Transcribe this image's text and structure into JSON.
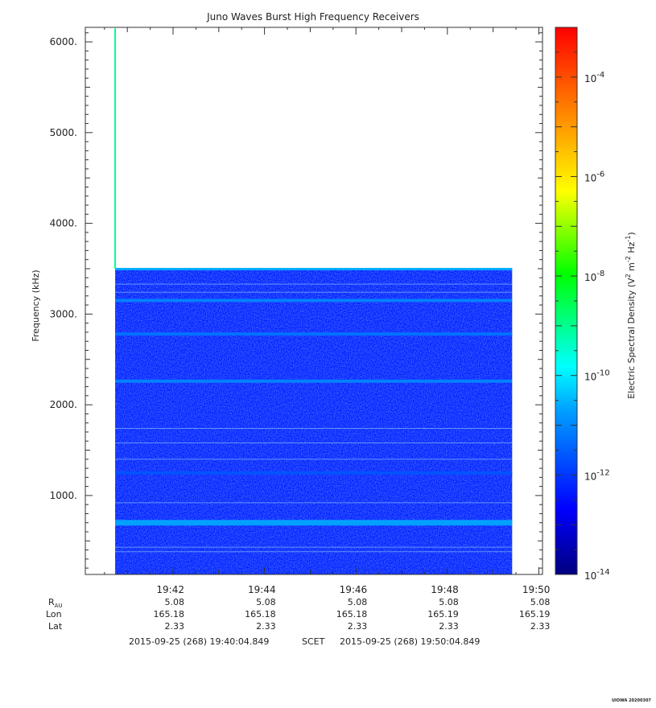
{
  "chart_data": {
    "type": "heatmap",
    "title": "Juno Waves Burst High Frequency Receivers",
    "ylabel": "Frequency (kHz)",
    "y_unit": "kHz",
    "ylim": [
      130,
      6160
    ],
    "y_ticks": [
      1000,
      2000,
      3000,
      4000,
      5000,
      6000
    ],
    "y_tick_labels": [
      "1000.",
      "2000.",
      "3000.",
      "4000.",
      "5000.",
      "6000."
    ],
    "x_ticks": [
      "19:42",
      "19:44",
      "19:46",
      "19:48",
      "19:50"
    ],
    "time_range": {
      "start": "19:40:04.849",
      "end": "19:50:04.849"
    },
    "data_extent": {
      "start": "19:40:44",
      "end": "19:49:25",
      "freq_max_kHz": 3500
    },
    "narrow_column": {
      "time": "19:40:44",
      "freq_range_kHz": [
        3500,
        6150
      ],
      "level_log10": -9
    },
    "background_level_log10": -12.3,
    "bands": [
      {
        "freq_kHz": 3150,
        "level_log10": -11.0
      },
      {
        "freq_kHz": 2780,
        "level_log10": -11.2
      },
      {
        "freq_kHz": 2260,
        "level_log10": -11.0
      },
      {
        "freq_kHz": 1250,
        "level_log10": -11.6
      },
      {
        "freq_kHz": 700,
        "level_log10": -10.6
      }
    ],
    "thin_lines_kHz": [
      3330,
      3240,
      1740,
      1580,
      1400,
      920,
      430,
      380
    ],
    "colorbar": {
      "label_main": "Electric Spectral Density (V",
      "label_unit_tail": "m",
      "label_unit_tail2": "Hz",
      "label_close": ")",
      "exp_label_2": "2",
      "exp_label_neg2": "-2",
      "exp_label_neg1": "-1",
      "log_range": [
        -14,
        -3
      ],
      "ticks": [
        -14,
        -12,
        -10,
        -8,
        -6,
        -4
      ],
      "tick_base": "10",
      "tick_exps": [
        "-14",
        "-12",
        "-10",
        "-8",
        "-6",
        "-4"
      ]
    },
    "ephemeris": {
      "labels": {
        "r_main": "R",
        "r_sub": "AU",
        "lon": "Lon",
        "lat": "Lat"
      },
      "values": [
        {
          "r": "5.08",
          "lon": "165.18",
          "lat": "2.33"
        },
        {
          "r": "5.08",
          "lon": "165.18",
          "lat": "2.33"
        },
        {
          "r": "5.08",
          "lon": "165.18",
          "lat": "2.33"
        },
        {
          "r": "5.08",
          "lon": "165.19",
          "lat": "2.33"
        },
        {
          "r": "5.08",
          "lon": "165.19",
          "lat": "2.33"
        }
      ]
    },
    "time_footer": {
      "start": "2015-09-25 (268) 19:40:04.849",
      "frame": "SCET",
      "end": "2015-09-25 (268) 19:50:04.849"
    },
    "stamp": "UIOWA 20200307"
  }
}
